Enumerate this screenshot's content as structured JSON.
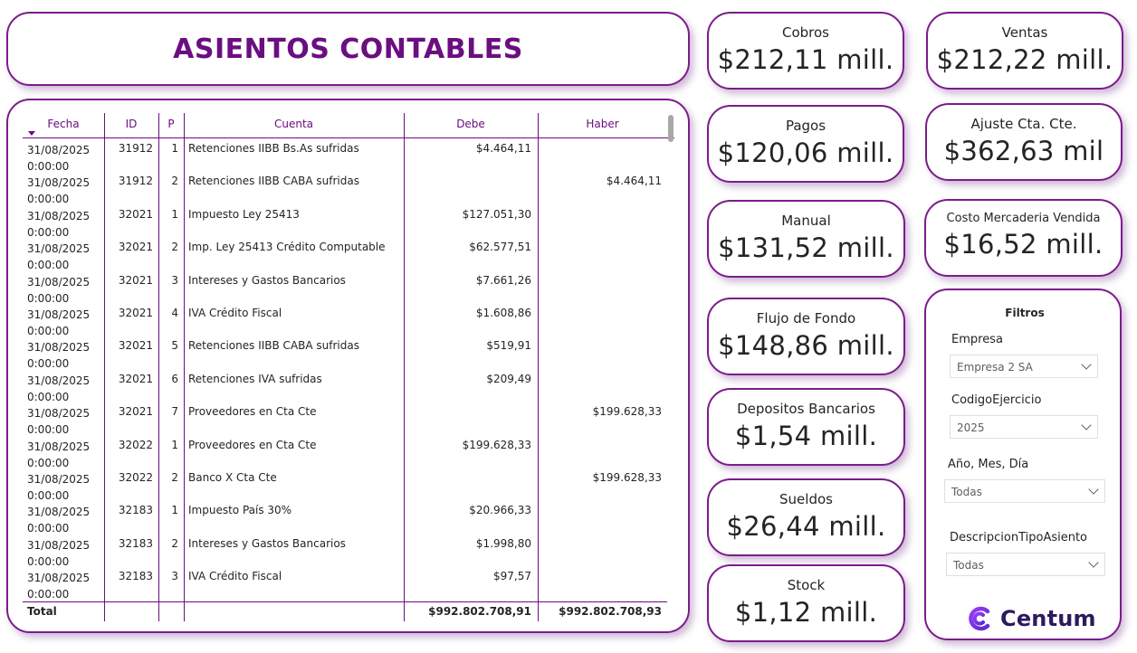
{
  "title": "ASIENTOS CONTABLES",
  "table": {
    "columns": {
      "fecha": "Fecha",
      "id": "ID",
      "p": "P",
      "cuenta": "Cuenta",
      "debe": "Debe",
      "haber": "Haber"
    },
    "rows": [
      {
        "fecha": "31/08/2025",
        "hora": "0:00:00",
        "id": "31912",
        "p": "1",
        "cuenta": "Retenciones IIBB Bs.As sufridas",
        "debe": "$4.464,11",
        "haber": ""
      },
      {
        "fecha": "31/08/2025",
        "hora": "0:00:00",
        "id": "31912",
        "p": "2",
        "cuenta": "Retenciones IIBB CABA sufridas",
        "debe": "",
        "haber": "$4.464,11"
      },
      {
        "fecha": "31/08/2025",
        "hora": "0:00:00",
        "id": "32021",
        "p": "1",
        "cuenta": "Impuesto Ley 25413",
        "debe": "$127.051,30",
        "haber": ""
      },
      {
        "fecha": "31/08/2025",
        "hora": "0:00:00",
        "id": "32021",
        "p": "2",
        "cuenta": "Imp. Ley 25413 Crédito Computable",
        "debe": "$62.577,51",
        "haber": ""
      },
      {
        "fecha": "31/08/2025",
        "hora": "0:00:00",
        "id": "32021",
        "p": "3",
        "cuenta": "Intereses y Gastos Bancarios",
        "debe": "$7.661,26",
        "haber": ""
      },
      {
        "fecha": "31/08/2025",
        "hora": "0:00:00",
        "id": "32021",
        "p": "4",
        "cuenta": "IVA Crédito Fiscal",
        "debe": "$1.608,86",
        "haber": ""
      },
      {
        "fecha": "31/08/2025",
        "hora": "0:00:00",
        "id": "32021",
        "p": "5",
        "cuenta": "Retenciones IIBB CABA sufridas",
        "debe": "$519,91",
        "haber": ""
      },
      {
        "fecha": "31/08/2025",
        "hora": "0:00:00",
        "id": "32021",
        "p": "6",
        "cuenta": "Retenciones IVA sufridas",
        "debe": "$209,49",
        "haber": ""
      },
      {
        "fecha": "31/08/2025",
        "hora": "0:00:00",
        "id": "32021",
        "p": "7",
        "cuenta": "Proveedores en Cta Cte",
        "debe": "",
        "haber": "$199.628,33"
      },
      {
        "fecha": "31/08/2025",
        "hora": "0:00:00",
        "id": "32022",
        "p": "1",
        "cuenta": "Proveedores en Cta Cte",
        "debe": "$199.628,33",
        "haber": ""
      },
      {
        "fecha": "31/08/2025",
        "hora": "0:00:00",
        "id": "32022",
        "p": "2",
        "cuenta": "Banco X Cta Cte",
        "debe": "",
        "haber": "$199.628,33"
      },
      {
        "fecha": "31/08/2025",
        "hora": "0:00:00",
        "id": "32183",
        "p": "1",
        "cuenta": "Impuesto País 30%",
        "debe": "$20.966,33",
        "haber": ""
      },
      {
        "fecha": "31/08/2025",
        "hora": "0:00:00",
        "id": "32183",
        "p": "2",
        "cuenta": "Intereses y Gastos Bancarios",
        "debe": "$1.998,80",
        "haber": ""
      },
      {
        "fecha": "31/08/2025",
        "hora": "0:00:00",
        "id": "32183",
        "p": "3",
        "cuenta": "IVA Crédito Fiscal",
        "debe": "$97,57",
        "haber": ""
      }
    ],
    "total": {
      "label": "Total",
      "debe": "$992.802.708,91",
      "haber": "$992.802.708,93"
    }
  },
  "kpis": {
    "cobros": {
      "label": "Cobros",
      "value": "$212,11 mill."
    },
    "ventas": {
      "label": "Ventas",
      "value": "$212,22 mill."
    },
    "pagos": {
      "label": "Pagos",
      "value": "$120,06 mill."
    },
    "ajuste": {
      "label": "Ajuste Cta. Cte.",
      "value": "$362,63 mil"
    },
    "manual": {
      "label": "Manual",
      "value": "$131,52 mill."
    },
    "cmv": {
      "label": "Costo Mercaderia Vendida",
      "value": "$16,52 mill."
    },
    "flujo": {
      "label": "Flujo de Fondo",
      "value": "$148,86 mill."
    },
    "depositos": {
      "label": "Depositos Bancarios",
      "value": "$1,54 mill."
    },
    "sueldos": {
      "label": "Sueldos",
      "value": "$26,44 mill."
    },
    "stock": {
      "label": "Stock",
      "value": "$1,12 mill."
    }
  },
  "filters": {
    "title": "Filtros",
    "empresa": {
      "label": "Empresa",
      "value": "Empresa 2 SA"
    },
    "ejercicio": {
      "label": "CodigoEjercicio",
      "value": "2025"
    },
    "fecha": {
      "label": "Año, Mes, Día",
      "value": "Todas"
    },
    "tipo": {
      "label": "DescripcionTipoAsiento",
      "value": "Todas"
    }
  },
  "brand": {
    "name": "Centum",
    "icon": "centum-logo-icon",
    "color": "#7b2ff2"
  },
  "colors": {
    "accent": "#6b0e80",
    "border": "#7b1c8a"
  }
}
